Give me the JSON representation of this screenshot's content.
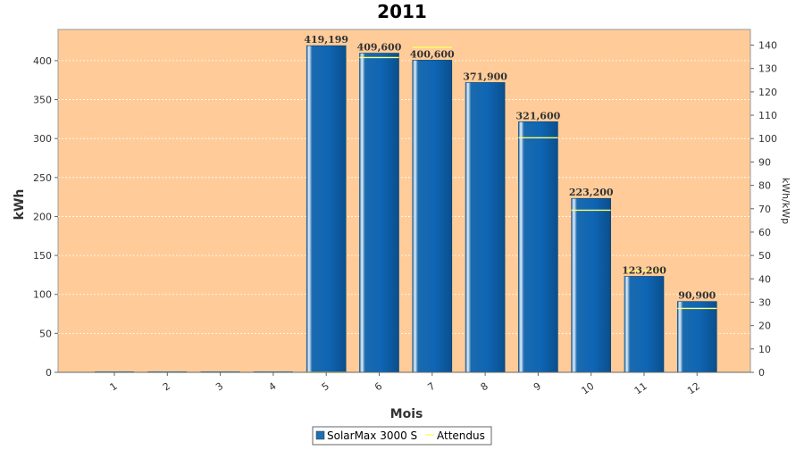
{
  "chart_data": {
    "type": "bar",
    "title": "2011",
    "xlabel": "Mois",
    "ylabel": "kWh",
    "y2label": "kWh/kWp",
    "categories": [
      "1",
      "2",
      "3",
      "4",
      "5",
      "6",
      "7",
      "8",
      "9",
      "10",
      "11",
      "12"
    ],
    "ylim": [
      0,
      440
    ],
    "y2lim": [
      0,
      146.7
    ],
    "yticks": [
      0,
      50,
      100,
      150,
      200,
      250,
      300,
      350,
      400
    ],
    "y2ticks": [
      0,
      10,
      20,
      30,
      40,
      50,
      60,
      70,
      80,
      90,
      100,
      110,
      120,
      130,
      140
    ],
    "grid": true,
    "legend_position": "bottom",
    "series": [
      {
        "name": "SolarMax 3000 S",
        "kind": "bar",
        "color": "#1f6fb4",
        "values": [
          0,
          0,
          0,
          0,
          419.199,
          409.6,
          400.6,
          371.9,
          321.6,
          223.2,
          123.2,
          90.9
        ],
        "labels": [
          "",
          "",
          "",
          "",
          "419,199",
          "409,600",
          "400,600",
          "371,900",
          "321,600",
          "223,200",
          "123,200",
          "90,900"
        ]
      },
      {
        "name": "Attendus",
        "kind": "line",
        "color": "#ffff66",
        "values": [
          null,
          null,
          null,
          null,
          0,
          404,
          417,
          null,
          301,
          208,
          130,
          82
        ]
      }
    ],
    "colors": {
      "plot_bg": "#ffcc99",
      "bar": "#1f6fb4",
      "expected": "#ffff66"
    }
  }
}
